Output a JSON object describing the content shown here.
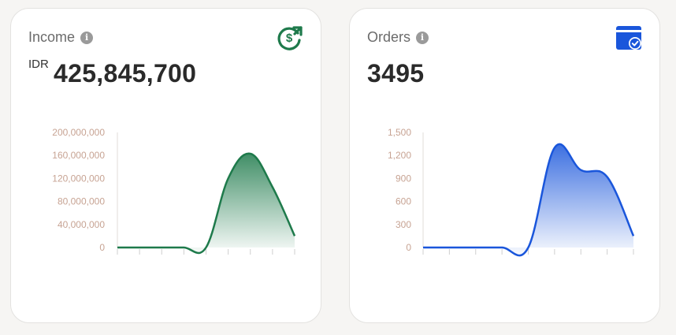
{
  "income": {
    "title": "Income",
    "currency": "IDR",
    "value": "425,845,700",
    "icon": "dollar-growth-icon",
    "color": "#1e7a4b",
    "chart_data": {
      "type": "area",
      "title": "",
      "xlabel": "",
      "ylabel": "",
      "ylim": [
        0,
        200000000
      ],
      "yticks": [
        "200,000,000",
        "160,000,000",
        "120,000,000",
        "80,000,000",
        "40,000,000",
        "0"
      ],
      "ytick_values": [
        200000000,
        160000000,
        120000000,
        80000000,
        40000000,
        0
      ],
      "x": [
        0,
        1,
        2,
        3,
        4,
        5,
        6,
        7,
        8
      ],
      "values": [
        0,
        0,
        0,
        0,
        0,
        120000000,
        163000000,
        105000000,
        20000000
      ],
      "grid": false
    }
  },
  "orders": {
    "title": "Orders",
    "value": "3495",
    "icon": "calendar-check-icon",
    "color": "#1a56db",
    "chart_data": {
      "type": "area",
      "title": "",
      "xlabel": "",
      "ylabel": "",
      "ylim": [
        0,
        1500
      ],
      "yticks": [
        "1,500",
        "1,200",
        "900",
        "600",
        "300",
        "0"
      ],
      "ytick_values": [
        1500,
        1200,
        900,
        600,
        300,
        0
      ],
      "x": [
        0,
        1,
        2,
        3,
        4,
        5,
        6,
        7,
        8
      ],
      "values": [
        0,
        0,
        0,
        0,
        0,
        1300,
        1010,
        920,
        150
      ],
      "grid": false
    }
  }
}
